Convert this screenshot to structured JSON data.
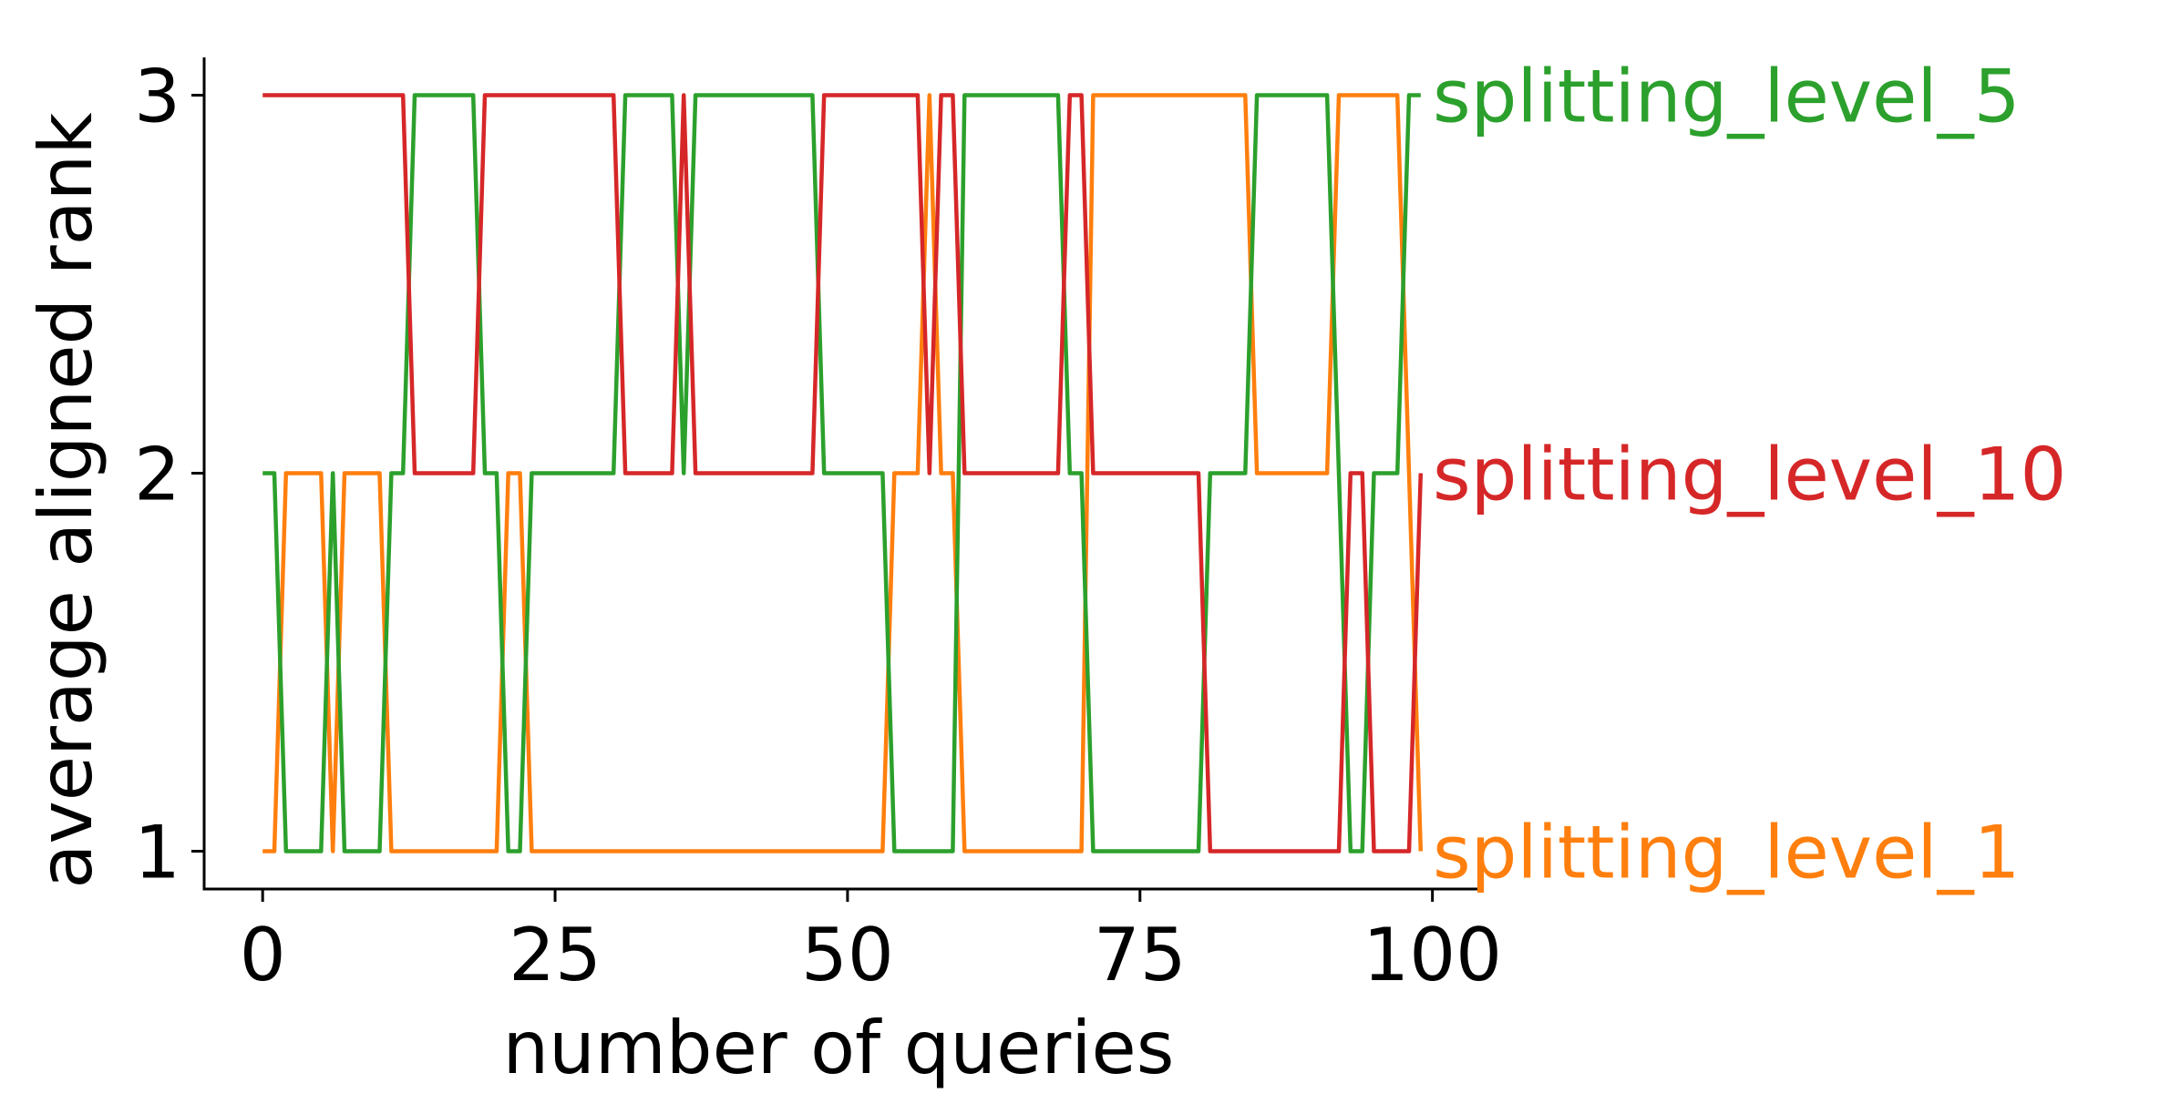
{
  "chart_data": {
    "type": "line",
    "xlabel": "number of queries",
    "ylabel": "average aligned rank",
    "xlim": [
      -5,
      104
    ],
    "ylim": [
      0.9,
      3.1
    ],
    "xticks": [
      0,
      25,
      50,
      75,
      100
    ],
    "yticks": [
      1,
      2,
      3
    ],
    "grid": false,
    "legend": "direct labels at right end of each series",
    "x_range": [
      0,
      99
    ],
    "series": [
      {
        "name": "splitting_level_1",
        "color": "#ff7f0e",
        "label_y": 1,
        "runs": [
          [
            0,
            1
          ],
          [
            1,
            1
          ],
          [
            2,
            2
          ],
          [
            5,
            2
          ],
          [
            6,
            1
          ],
          [
            7,
            2
          ],
          [
            10,
            2
          ],
          [
            11,
            1
          ],
          [
            20,
            1
          ],
          [
            21,
            2
          ],
          [
            22,
            2
          ],
          [
            23,
            1
          ],
          [
            53,
            1
          ],
          [
            54,
            2
          ],
          [
            56,
            2
          ],
          [
            57,
            3
          ],
          [
            58,
            2
          ],
          [
            59,
            2
          ],
          [
            60,
            1
          ],
          [
            70,
            1
          ],
          [
            71,
            3
          ],
          [
            84,
            3
          ],
          [
            85,
            2
          ],
          [
            91,
            2
          ],
          [
            92,
            3
          ],
          [
            97,
            3
          ],
          [
            98,
            2
          ],
          [
            99,
            1
          ]
        ]
      },
      {
        "name": "splitting_level_5",
        "color": "#2ca02c",
        "label_y": 3,
        "runs": [
          [
            0,
            2
          ],
          [
            1,
            2
          ],
          [
            2,
            1
          ],
          [
            5,
            1
          ],
          [
            6,
            2
          ],
          [
            7,
            1
          ],
          [
            10,
            1
          ],
          [
            11,
            2
          ],
          [
            12,
            2
          ],
          [
            13,
            3
          ],
          [
            18,
            3
          ],
          [
            19,
            2
          ],
          [
            20,
            2
          ],
          [
            21,
            1
          ],
          [
            22,
            1
          ],
          [
            23,
            2
          ],
          [
            30,
            2
          ],
          [
            31,
            3
          ],
          [
            35,
            3
          ],
          [
            36,
            2
          ],
          [
            37,
            3
          ],
          [
            47,
            3
          ],
          [
            48,
            2
          ],
          [
            53,
            2
          ],
          [
            54,
            1
          ],
          [
            59,
            1
          ],
          [
            60,
            3
          ],
          [
            68,
            3
          ],
          [
            69,
            2
          ],
          [
            70,
            2
          ],
          [
            71,
            1
          ],
          [
            80,
            1
          ],
          [
            81,
            2
          ],
          [
            84,
            2
          ],
          [
            85,
            3
          ],
          [
            91,
            3
          ],
          [
            92,
            2
          ],
          [
            93,
            1
          ],
          [
            94,
            1
          ],
          [
            95,
            2
          ],
          [
            97,
            2
          ],
          [
            98,
            3
          ],
          [
            99,
            3
          ]
        ]
      },
      {
        "name": "splitting_level_10",
        "color": "#d62728",
        "label_y": 2,
        "runs": [
          [
            0,
            3
          ],
          [
            12,
            3
          ],
          [
            13,
            2
          ],
          [
            18,
            2
          ],
          [
            19,
            3
          ],
          [
            30,
            3
          ],
          [
            31,
            2
          ],
          [
            35,
            2
          ],
          [
            36,
            3
          ],
          [
            37,
            2
          ],
          [
            47,
            2
          ],
          [
            48,
            3
          ],
          [
            56,
            3
          ],
          [
            57,
            2
          ],
          [
            58,
            3
          ],
          [
            59,
            3
          ],
          [
            60,
            2
          ],
          [
            68,
            2
          ],
          [
            69,
            3
          ],
          [
            70,
            3
          ],
          [
            71,
            2
          ],
          [
            80,
            2
          ],
          [
            81,
            1
          ],
          [
            92,
            1
          ],
          [
            93,
            2
          ],
          [
            94,
            2
          ],
          [
            95,
            1
          ],
          [
            98,
            1
          ],
          [
            99,
            2
          ]
        ]
      }
    ]
  }
}
